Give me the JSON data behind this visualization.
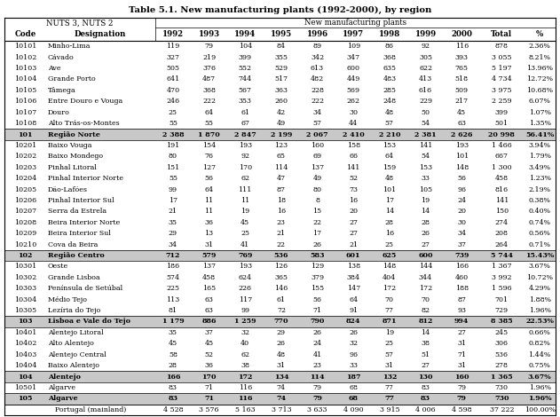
{
  "title": "Table 5.1. New manufacturing plants (1992-2000), by region",
  "col_headers_row1_left": "NUTS 3, NUTS 2",
  "col_headers_row1_right": "New manufacturing plants",
  "col_headers_row2": [
    "Code",
    "Designation",
    "1992",
    "1993",
    "1994",
    "1995",
    "1996",
    "1997",
    "1998",
    "1999",
    "2000",
    "Total",
    "%"
  ],
  "rows": [
    [
      "10101",
      "Minho-Lima",
      "119",
      "79",
      "104",
      "84",
      "89",
      "109",
      "86",
      "92",
      "116",
      "878",
      "2.36%",
      false,
      false
    ],
    [
      "10102",
      "Cávado",
      "327",
      "219",
      "399",
      "355",
      "342",
      "347",
      "368",
      "305",
      "393",
      "3 055",
      "8.21%",
      false,
      false
    ],
    [
      "10103",
      "Ave",
      "505",
      "376",
      "552",
      "529",
      "613",
      "600",
      "635",
      "622",
      "765",
      "5 197",
      "13.96%",
      false,
      false
    ],
    [
      "10104",
      "Grande Porto",
      "641",
      "487",
      "744",
      "517",
      "482",
      "449",
      "483",
      "413",
      "518",
      "4 734",
      "12.72%",
      false,
      false
    ],
    [
      "10105",
      "Tâmega",
      "470",
      "368",
      "567",
      "363",
      "228",
      "569",
      "285",
      "616",
      "509",
      "3 975",
      "10.68%",
      false,
      false
    ],
    [
      "10106",
      "Entre Douro e Vouga",
      "246",
      "222",
      "353",
      "260",
      "222",
      "262",
      "248",
      "229",
      "217",
      "2 259",
      "6.07%",
      false,
      false
    ],
    [
      "10107",
      "Douro",
      "25",
      "64",
      "61",
      "42",
      "34",
      "30",
      "48",
      "50",
      "45",
      "399",
      "1.07%",
      false,
      false
    ],
    [
      "10108",
      "Alto Trás-os-Montes",
      "55",
      "55",
      "67",
      "49",
      "57",
      "44",
      "57",
      "54",
      "63",
      "501",
      "1.35%",
      false,
      false
    ],
    [
      "101",
      "Região Norte",
      "2 388",
      "1 870",
      "2 847",
      "2 199",
      "2 067",
      "2 410",
      "2 210",
      "2 381",
      "2 626",
      "20 998",
      "56.41%",
      true,
      false
    ],
    [
      "10201",
      "Baixo Vouga",
      "191",
      "154",
      "193",
      "123",
      "160",
      "158",
      "153",
      "141",
      "193",
      "1 466",
      "3.94%",
      false,
      false
    ],
    [
      "10202",
      "Baixo Mondego",
      "80",
      "76",
      "92",
      "65",
      "69",
      "66",
      "64",
      "54",
      "101",
      "667",
      "1.79%",
      false,
      false
    ],
    [
      "10203",
      "Pinhal Litoral",
      "151",
      "127",
      "170",
      "114",
      "137",
      "141",
      "159",
      "153",
      "148",
      "1 300",
      "3.49%",
      false,
      false
    ],
    [
      "10204",
      "Pinhal Interior Norte",
      "55",
      "56",
      "62",
      "47",
      "49",
      "52",
      "48",
      "33",
      "56",
      "458",
      "1.23%",
      false,
      false
    ],
    [
      "10205",
      "Dão-Lafões",
      "99",
      "64",
      "111",
      "87",
      "80",
      "73",
      "101",
      "105",
      "96",
      "816",
      "2.19%",
      false,
      false
    ],
    [
      "10206",
      "Pinhal Interior Sul",
      "17",
      "11",
      "11",
      "18",
      "8",
      "16",
      "17",
      "19",
      "24",
      "141",
      "0.38%",
      false,
      false
    ],
    [
      "10207",
      "Serra da Estrela",
      "21",
      "11",
      "19",
      "16",
      "15",
      "20",
      "14",
      "14",
      "20",
      "150",
      "0.40%",
      false,
      false
    ],
    [
      "10208",
      "Beira Interior Norte",
      "35",
      "36",
      "45",
      "23",
      "22",
      "27",
      "28",
      "28",
      "30",
      "274",
      "0.74%",
      false,
      false
    ],
    [
      "10209",
      "Beira Interior Sul",
      "29",
      "13",
      "25",
      "21",
      "17",
      "27",
      "16",
      "26",
      "34",
      "208",
      "0.56%",
      false,
      false
    ],
    [
      "10210",
      "Cova da Beira",
      "34",
      "31",
      "41",
      "22",
      "26",
      "21",
      "25",
      "27",
      "37",
      "264",
      "0.71%",
      false,
      false
    ],
    [
      "102",
      "Região Centro",
      "712",
      "579",
      "769",
      "536",
      "583",
      "601",
      "625",
      "600",
      "739",
      "5 744",
      "15.43%",
      true,
      false
    ],
    [
      "10301",
      "Oeste",
      "186",
      "137",
      "193",
      "126",
      "129",
      "138",
      "148",
      "144",
      "166",
      "1 367",
      "3.67%",
      false,
      false
    ],
    [
      "10302",
      "Grande Lisboa",
      "574",
      "458",
      "624",
      "365",
      "379",
      "384",
      "404",
      "344",
      "460",
      "3 992",
      "10.72%",
      false,
      false
    ],
    [
      "10303",
      "Península de Setúbal",
      "225",
      "165",
      "226",
      "146",
      "155",
      "147",
      "172",
      "172",
      "188",
      "1 596",
      "4.29%",
      false,
      false
    ],
    [
      "10304",
      "Médio Tejo",
      "113",
      "63",
      "117",
      "61",
      "56",
      "64",
      "70",
      "70",
      "87",
      "701",
      "1.88%",
      false,
      false
    ],
    [
      "10305",
      "Lezíria do Tejo",
      "81",
      "63",
      "99",
      "72",
      "71",
      "91",
      "77",
      "82",
      "93",
      "729",
      "1.96%",
      false,
      false
    ],
    [
      "103",
      "Lisboa e Vale do Tejo",
      "1 179",
      "886",
      "1 259",
      "770",
      "790",
      "824",
      "871",
      "812",
      "994",
      "8 385",
      "22.53%",
      true,
      false
    ],
    [
      "10401",
      "Alentejo Litoral",
      "35",
      "37",
      "32",
      "29",
      "26",
      "26",
      "19",
      "14",
      "27",
      "245",
      "0.66%",
      false,
      false
    ],
    [
      "10402",
      "Alto Alentejo",
      "45",
      "45",
      "40",
      "26",
      "24",
      "32",
      "25",
      "38",
      "31",
      "306",
      "0.82%",
      false,
      false
    ],
    [
      "10403",
      "Alentejo Central",
      "58",
      "52",
      "62",
      "48",
      "41",
      "96",
      "57",
      "51",
      "71",
      "536",
      "1.44%",
      false,
      false
    ],
    [
      "10404",
      "Baixo Alentejo",
      "28",
      "36",
      "38",
      "31",
      "23",
      "33",
      "31",
      "27",
      "31",
      "278",
      "0.75%",
      false,
      false
    ],
    [
      "104",
      "Alentejo",
      "166",
      "170",
      "172",
      "134",
      "114",
      "187",
      "132",
      "130",
      "160",
      "1 365",
      "3.67%",
      true,
      false
    ],
    [
      "10501",
      "Algarve",
      "83",
      "71",
      "116",
      "74",
      "79",
      "68",
      "77",
      "83",
      "79",
      "730",
      "1.96%",
      false,
      false
    ],
    [
      "105",
      "Algarve",
      "83",
      "71",
      "116",
      "74",
      "79",
      "68",
      "77",
      "83",
      "79",
      "730",
      "1.96%",
      true,
      false
    ],
    [
      "",
      "Portugal (mainland)",
      "4 528",
      "3 576",
      "5 163",
      "3 713",
      "3 633",
      "4 090",
      "3 915",
      "4 006",
      "4 598",
      "37 222",
      "100.00%",
      false,
      true
    ]
  ],
  "subtotal_bg": "#c8c8c8",
  "total_bg": "#ffffff",
  "normal_bg": "#ffffff"
}
